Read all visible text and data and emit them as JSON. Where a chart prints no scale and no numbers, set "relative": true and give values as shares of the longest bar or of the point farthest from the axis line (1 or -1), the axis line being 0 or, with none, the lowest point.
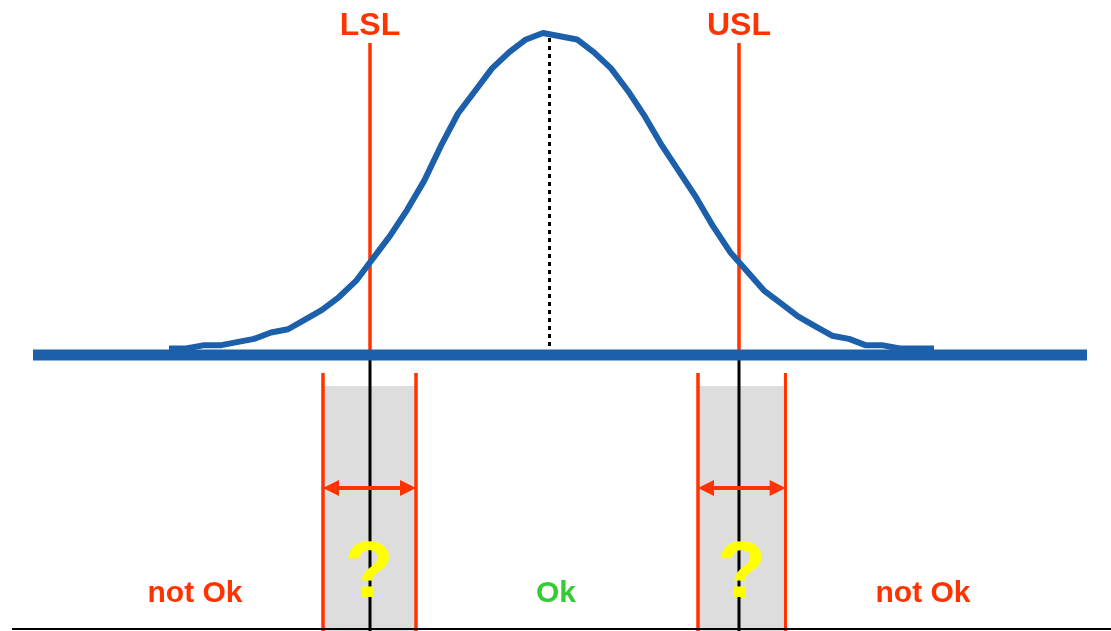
{
  "chart_data": {
    "type": "line",
    "categories": [
      null,
      null,
      null,
      null,
      null,
      null,
      null,
      null,
      null,
      null,
      null,
      null,
      null,
      null,
      null,
      null,
      null,
      null,
      null,
      null,
      null,
      null,
      null,
      null,
      null,
      null,
      null,
      null,
      null,
      null,
      null,
      null,
      null,
      null,
      null,
      null,
      null,
      null,
      null,
      null,
      null,
      null,
      null,
      null,
      null,
      null,
      null,
      null,
      null,
      null,
      null,
      null,
      null,
      null,
      null,
      null,
      null,
      null,
      null,
      null,
      null,
      null,
      null
    ],
    "series": [
      {
        "color": "#1c60ab",
        "values": [
          null,
          null,
          null,
          null,
          null,
          null,
          null,
          null,
          0.02,
          0.02,
          0.03,
          0.03,
          0.04,
          0.05,
          0.07,
          0.08,
          0.11,
          0.14,
          0.18,
          0.23,
          0.3,
          0.37,
          0.45,
          0.54,
          0.65,
          0.75,
          0.82,
          0.89,
          0.94,
          0.98,
          1.0,
          0.99,
          0.98,
          0.94,
          0.89,
          0.82,
          0.74,
          0.65,
          0.57,
          0.49,
          0.4,
          0.32,
          0.26,
          0.2,
          0.16,
          0.12,
          0.09,
          0.06,
          0.05,
          0.03,
          0.03,
          0.02,
          0.02,
          0.02,
          null,
          null,
          null,
          null,
          null,
          null,
          null,
          null,
          null
        ]
      },
      {
        "color": "#1c60ab",
        "values": [
          0,
          0,
          0,
          0,
          0,
          0,
          0,
          0,
          0,
          0,
          0,
          0,
          0,
          0,
          0,
          0,
          0,
          0,
          0,
          0,
          0,
          0,
          0,
          0,
          0,
          0,
          0,
          0,
          0,
          0,
          0,
          0,
          0,
          0,
          0,
          0,
          0,
          0,
          0,
          0,
          0,
          0,
          0,
          0,
          0,
          0,
          0,
          0,
          0,
          0,
          0,
          0,
          0,
          0,
          0,
          0,
          0,
          0,
          0,
          0,
          0,
          0,
          0
        ]
      }
    ],
    "relative": true,
    "tick_labels": false,
    "annotations": [
      "LSL",
      "USL",
      "?",
      "?",
      "not Ok",
      "Ok",
      "not Ok"
    ]
  }
}
